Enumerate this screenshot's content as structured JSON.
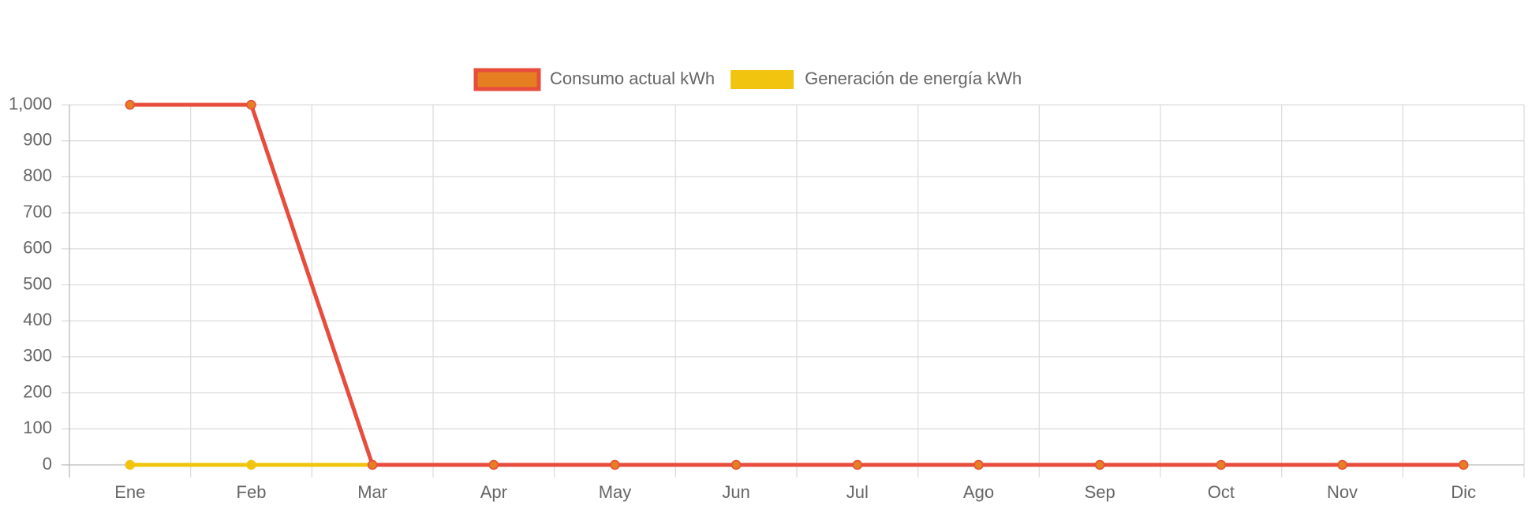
{
  "chart_data": {
    "type": "line",
    "categories": [
      "Ene",
      "Feb",
      "Mar",
      "Apr",
      "May",
      "Jun",
      "Jul",
      "Ago",
      "Sep",
      "Oct",
      "Nov",
      "Dic"
    ],
    "series": [
      {
        "name": "Generación de energía kWh",
        "color": "#f1c40f",
        "values": [
          0,
          0,
          0,
          0,
          0,
          0,
          0,
          0,
          0,
          0,
          0,
          0
        ]
      },
      {
        "name": "Consumo actual kWh",
        "color": "#e74c3c",
        "point_color": "#e67e22",
        "values": [
          1000,
          1000,
          0,
          0,
          0,
          0,
          0,
          0,
          0,
          0,
          0,
          0
        ]
      }
    ],
    "legend_order": [
      1,
      0
    ],
    "ylim": [
      0,
      1000
    ],
    "yticks": [
      0,
      100,
      200,
      300,
      400,
      500,
      600,
      700,
      800,
      900,
      {
        "value": 1000,
        "label": "1,000"
      }
    ],
    "grid": true,
    "legend": "top"
  }
}
